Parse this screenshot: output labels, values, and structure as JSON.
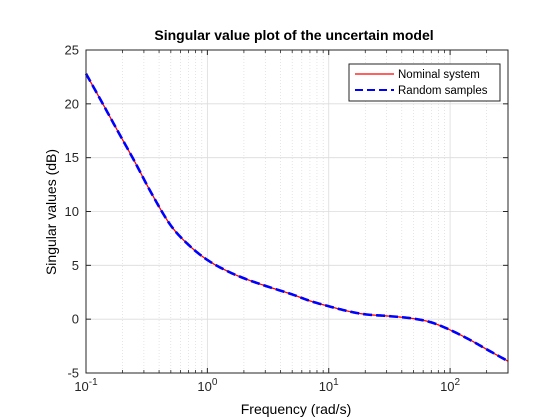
{
  "chart_data": {
    "type": "line",
    "title": "Singular value plot of the uncertain model",
    "xlabel": "Frequency (rad/s)",
    "ylabel": "Singular values (dB)",
    "xscale": "log",
    "xlim": [
      0.1,
      300
    ],
    "ylim": [
      -5,
      25
    ],
    "grid": true,
    "minor_grid_x": true,
    "xticks": [
      0.1,
      1,
      10,
      100
    ],
    "xtick_labels": [
      {
        "base": "10",
        "exp": "-1"
      },
      {
        "base": "10",
        "exp": "0"
      },
      {
        "base": "10",
        "exp": "1"
      },
      {
        "base": "10",
        "exp": "2"
      }
    ],
    "yticks": [
      -5,
      0,
      5,
      10,
      15,
      20,
      25
    ],
    "ytick_labels": [
      "-5",
      "0",
      "5",
      "10",
      "15",
      "20",
      "25"
    ],
    "legend_position": "top-right",
    "series": [
      {
        "name": "Nominal system",
        "color": "#ff0000",
        "style": "solid",
        "x": [
          0.1,
          0.13,
          0.18,
          0.25,
          0.35,
          0.5,
          0.7,
          1.0,
          1.5,
          2.0,
          3.0,
          5.0,
          7.0,
          10,
          15,
          20,
          30,
          50,
          70,
          100,
          150,
          200,
          300
        ],
        "y": [
          22.8,
          20.5,
          17.6,
          14.7,
          11.6,
          8.7,
          6.9,
          5.5,
          4.4,
          3.8,
          3.1,
          2.3,
          1.7,
          1.2,
          0.7,
          0.45,
          0.3,
          0.05,
          -0.3,
          -1.0,
          -2.0,
          -2.8,
          -3.9
        ]
      },
      {
        "name": "Random samples",
        "color": "#0000ff",
        "style": "dashed",
        "x": [
          0.1,
          0.13,
          0.18,
          0.25,
          0.35,
          0.5,
          0.7,
          1.0,
          1.5,
          2.0,
          3.0,
          5.0,
          7.0,
          10,
          15,
          20,
          30,
          50,
          70,
          100,
          150,
          200,
          300
        ],
        "y": [
          22.8,
          20.5,
          17.6,
          14.7,
          11.6,
          8.7,
          6.9,
          5.5,
          4.4,
          3.8,
          3.1,
          2.3,
          1.7,
          1.2,
          0.7,
          0.45,
          0.3,
          0.05,
          -0.3,
          -1.0,
          -2.0,
          -2.8,
          -3.9
        ]
      }
    ]
  }
}
